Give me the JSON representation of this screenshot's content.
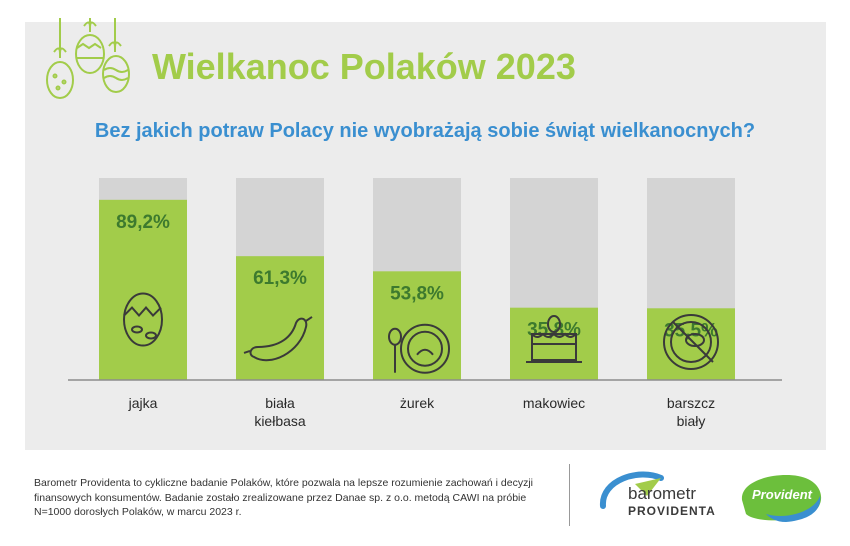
{
  "header": {
    "title": "Wielkanoc Polaków 2023",
    "question": "Bez jakich potraw Polacy nie wyobrażają sobie świąt wielkanocnych?"
  },
  "chart_data": {
    "type": "bar",
    "title": "Bez jakich potraw Polacy nie wyobrażają sobie świąt wielkanocnych?",
    "categories": [
      "jajka",
      "biała kiełbasa",
      "żurek",
      "makowiec",
      "barszcz biały"
    ],
    "category_lines": [
      [
        "jajka"
      ],
      [
        "biała",
        "kiełbasa"
      ],
      [
        "żurek"
      ],
      [
        "makowiec"
      ],
      [
        "barszcz",
        "biały"
      ]
    ],
    "values": [
      89.2,
      61.3,
      53.8,
      35.8,
      35.5
    ],
    "value_labels": [
      "89,2%",
      "61,3%",
      "53,8%",
      "35,8%",
      "35,5%"
    ],
    "icons": [
      "egg-icon",
      "sausage-icon",
      "soup-bowl-icon",
      "cake-icon",
      "borscht-bowl-icon"
    ],
    "ylim": [
      0,
      100
    ],
    "grid": false,
    "colors": {
      "fill": "#a2cc4a",
      "track": "#d4d4d4",
      "value_text": "#3d7a2e",
      "axis": "#8c8c8c"
    }
  },
  "footer": {
    "description": "Barometr Providenta to cykliczne badanie Polaków, które pozwala na lepsze rozumienie zachowań i decyzji finansowych konsumentów. Badanie zostało zrealizowane przez Danae sp. z o.o. metodą CAWI na próbie N=1000 dorosłych Polaków, w marcu 2023 r."
  },
  "logos": {
    "barometr_line1": "barometr",
    "barometr_line2": "PROVIDENTA",
    "provident": "Provident"
  }
}
